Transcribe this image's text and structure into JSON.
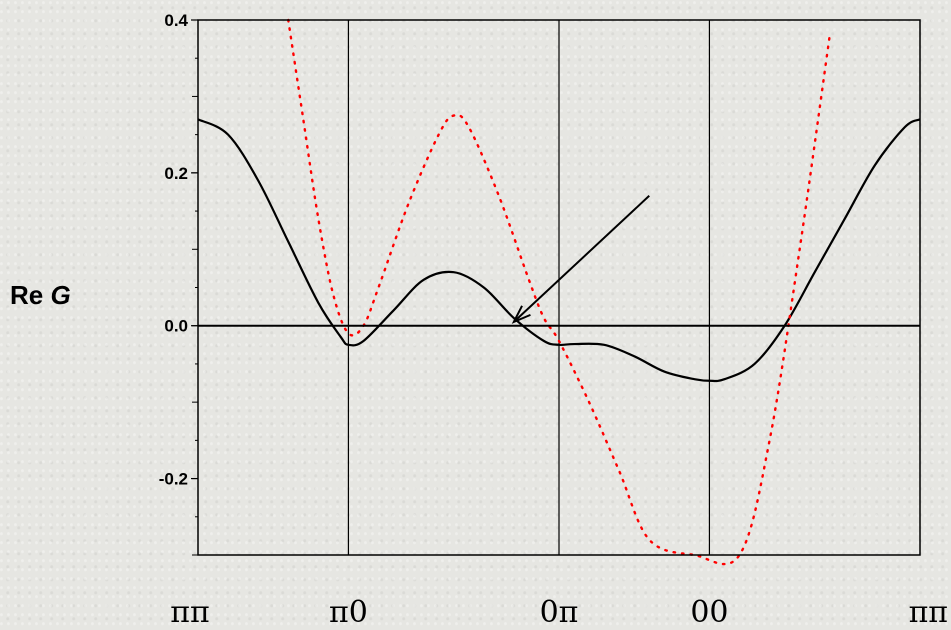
{
  "chart_data": {
    "type": "line",
    "ylabel": "Re",
    "ylabel_var": "G",
    "ylim": [
      -0.3,
      0.4
    ],
    "yticks": [
      {
        "value": 0.4,
        "label": "0.4"
      },
      {
        "value": 0.2,
        "label": "0.2"
      },
      {
        "value": 0.0,
        "label": "0.0"
      },
      {
        "value": -0.2,
        "label": "-0.2"
      }
    ],
    "xlim": [
      0,
      4.8
    ],
    "path_points": [
      {
        "x": 0,
        "label": "ππ"
      },
      {
        "x": 1,
        "label": "π0"
      },
      {
        "x": 2.4,
        "label": "0π"
      },
      {
        "x": 3.4,
        "label": "00"
      },
      {
        "x": 4.8,
        "label": "ππ"
      }
    ],
    "series": [
      {
        "style": "solid",
        "color": "#000000",
        "x": [
          0,
          0.2,
          0.4,
          0.6,
          0.8,
          0.95,
          1.0,
          1.1,
          1.3,
          1.5,
          1.7,
          1.9,
          2.1,
          2.3,
          2.4,
          2.5,
          2.7,
          2.9,
          3.1,
          3.3,
          3.4,
          3.5,
          3.7,
          3.9,
          4.1,
          4.3,
          4.5,
          4.7,
          4.8
        ],
        "y": [
          0.27,
          0.25,
          0.19,
          0.11,
          0.03,
          -0.015,
          -0.025,
          -0.02,
          0.02,
          0.06,
          0.07,
          0.05,
          0.01,
          -0.02,
          -0.025,
          -0.024,
          -0.025,
          -0.04,
          -0.06,
          -0.07,
          -0.072,
          -0.07,
          -0.05,
          0.0,
          0.07,
          0.14,
          0.21,
          0.26,
          0.27
        ]
      },
      {
        "style": "dotted",
        "color": "#ff0000",
        "x": [
          0.6,
          0.7,
          0.8,
          0.9,
          1.0,
          1.1,
          1.2,
          1.4,
          1.6,
          1.7,
          1.8,
          2.0,
          2.2,
          2.3,
          2.4,
          2.6,
          2.8,
          3.0,
          3.3,
          3.6,
          3.8,
          4.0,
          4.2
        ],
        "y": [
          0.4,
          0.27,
          0.14,
          0.04,
          -0.01,
          0.0,
          0.05,
          0.16,
          0.25,
          0.275,
          0.26,
          0.17,
          0.06,
          0.01,
          -0.02,
          -0.1,
          -0.19,
          -0.28,
          -0.3,
          -0.3,
          -0.15,
          0.1,
          0.38
        ]
      }
    ],
    "grid_x": [
      1,
      2.4,
      3.4
    ],
    "arrow": {
      "from": [
        3.0,
        0.17
      ],
      "to": [
        2.1,
        0.005
      ]
    }
  }
}
